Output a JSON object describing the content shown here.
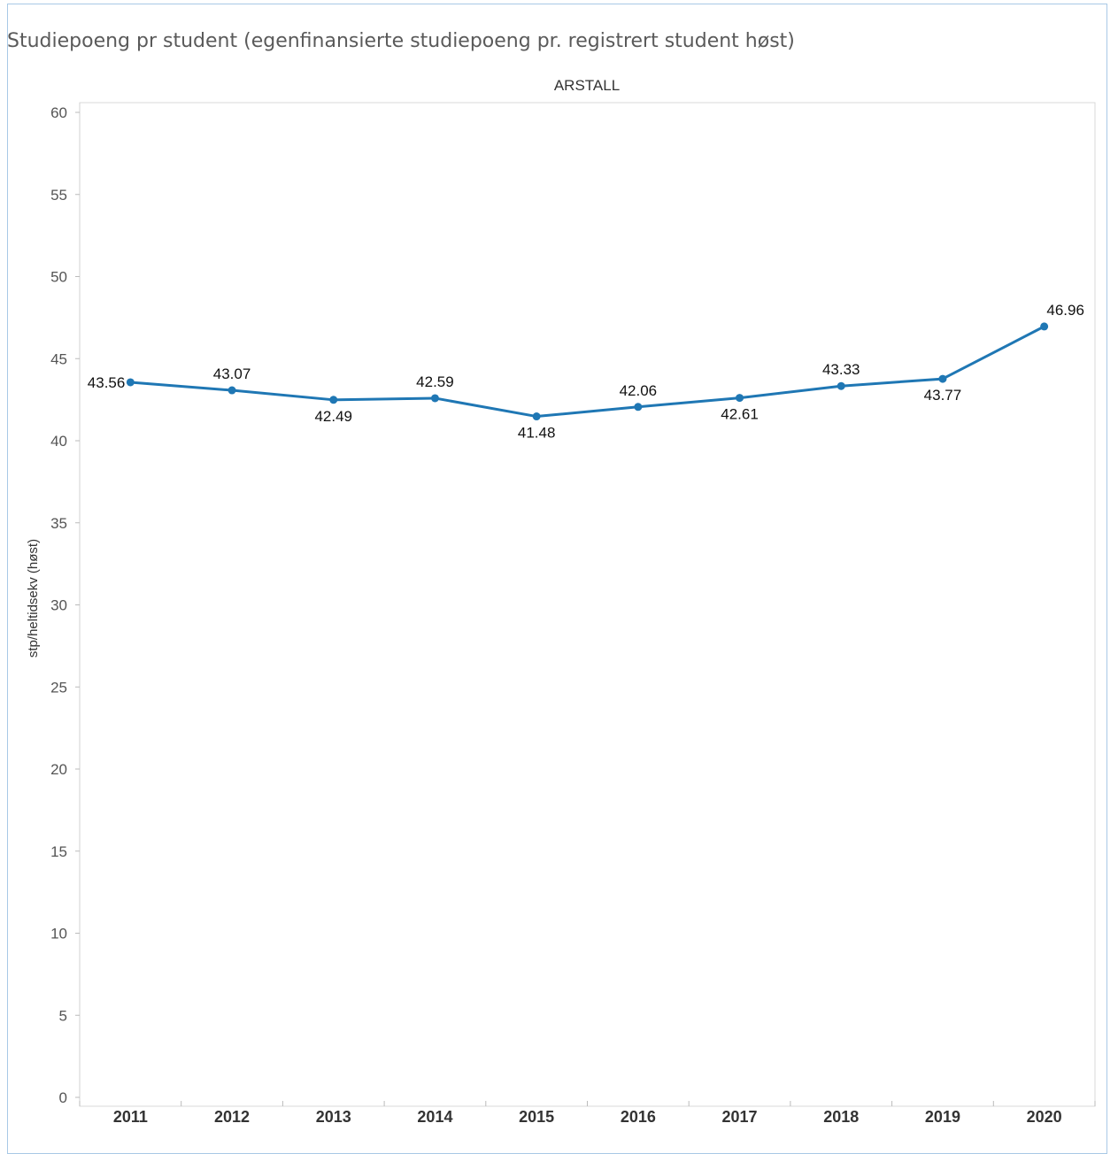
{
  "chart_data": {
    "type": "line",
    "title": "Studiepoeng pr student (egenfinansierte studiepoeng pr. registrert student høst)",
    "xlabel": "ARSTALL",
    "ylabel": "stp/heltidsekv (høst)",
    "categories": [
      "2011",
      "2012",
      "2013",
      "2014",
      "2015",
      "2016",
      "2017",
      "2018",
      "2019",
      "2020"
    ],
    "values": [
      43.56,
      43.07,
      42.49,
      42.59,
      41.48,
      42.06,
      42.61,
      43.33,
      43.77,
      46.96
    ],
    "label_position": [
      "left",
      "above",
      "below",
      "above",
      "below",
      "above",
      "below",
      "above",
      "below",
      "above"
    ],
    "ylim": [
      0,
      60
    ],
    "yticks": [
      0,
      5,
      10,
      15,
      20,
      25,
      30,
      35,
      40,
      45,
      50,
      55,
      60
    ],
    "grid": false,
    "line_color": "#1f77b4"
  }
}
